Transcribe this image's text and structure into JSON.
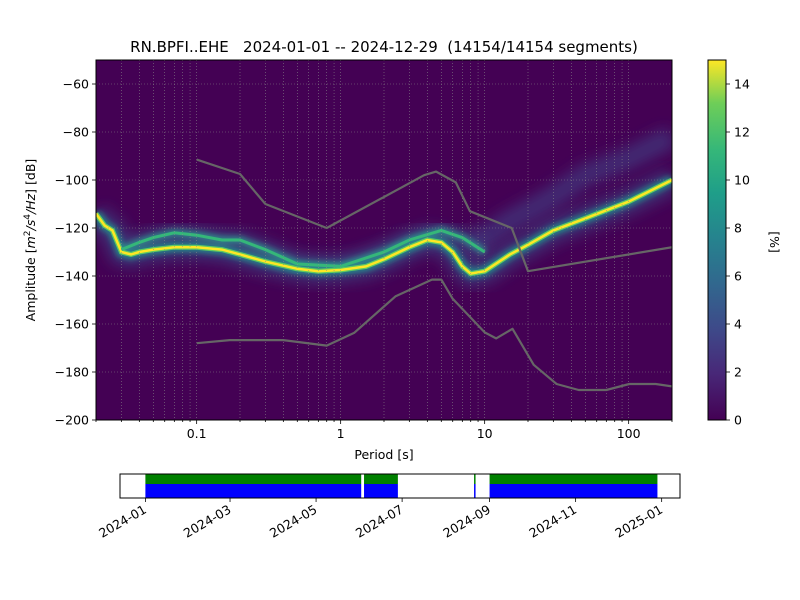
{
  "chart_data": [
    {
      "type": "heatmap",
      "title": "RN.BPFI..EHE   2024-01-01 -- 2024-12-29  (14154/14154 segments)",
      "xlabel": "Period [s]",
      "ylabel": "Amplitude [m²/s⁴/Hz] [dB]",
      "ylabel_parts": {
        "pre": "Amplitude [",
        "m": "m",
        "s": "s",
        "exp2": "2",
        "exp4": "4",
        "hz": "/Hz",
        "post": "] [dB]"
      },
      "x_scale": "log",
      "xlim": [
        0.02,
        200
      ],
      "ylim": [
        -200,
        -50
      ],
      "x_tick_labels": [
        "0.1",
        "1",
        "10",
        "100"
      ],
      "x_ticks": [
        0.1,
        1,
        10,
        100
      ],
      "y_ticks": [
        -200,
        -180,
        -160,
        -140,
        -120,
        -100,
        -80,
        -60
      ],
      "y_tick_labels": [
        "−200",
        "−180",
        "−160",
        "−140",
        "−120",
        "−100",
        "−80",
        "−60"
      ],
      "grid": true,
      "background_color": "#440154",
      "colorbar": {
        "label": "[%]",
        "range": [
          0,
          15
        ],
        "ticks": [
          0,
          2,
          4,
          6,
          8,
          10,
          12,
          14
        ],
        "tick_labels": [
          "0",
          "2",
          "4",
          "6",
          "8",
          "10",
          "12",
          "14"
        ]
      },
      "dominant_ridge": {
        "name": "",
        "points": [
          [
            0.02,
            -114
          ],
          [
            0.023,
            -119
          ],
          [
            0.026,
            -121
          ],
          [
            0.03,
            -130
          ],
          [
            0.035,
            -131
          ],
          [
            0.04,
            -130
          ],
          [
            0.05,
            -129
          ],
          [
            0.07,
            -128
          ],
          [
            0.1,
            -128
          ],
          [
            0.15,
            -129
          ],
          [
            0.2,
            -131
          ],
          [
            0.3,
            -134
          ],
          [
            0.5,
            -137
          ],
          [
            0.7,
            -138
          ],
          [
            1,
            -137.5
          ],
          [
            1.5,
            -136
          ],
          [
            2,
            -133
          ],
          [
            3,
            -128
          ],
          [
            4,
            -125
          ],
          [
            5,
            -126
          ],
          [
            6,
            -130
          ],
          [
            7,
            -136
          ],
          [
            8,
            -139
          ],
          [
            10,
            -138
          ],
          [
            15,
            -131
          ],
          [
            20,
            -127
          ],
          [
            30,
            -121
          ],
          [
            50,
            -116
          ],
          [
            100,
            -109
          ],
          [
            200,
            -100
          ]
        ]
      },
      "secondary_ridge": {
        "name": "",
        "points": [
          [
            0.03,
            -129
          ],
          [
            0.04,
            -126
          ],
          [
            0.05,
            -124
          ],
          [
            0.07,
            -122
          ],
          [
            0.1,
            -123
          ],
          [
            0.15,
            -125
          ],
          [
            0.2,
            -125
          ],
          [
            0.3,
            -129
          ],
          [
            0.5,
            -135
          ],
          [
            1,
            -136
          ],
          [
            2,
            -130
          ],
          [
            3,
            -125
          ],
          [
            5,
            -121
          ],
          [
            7,
            -124
          ],
          [
            10,
            -130
          ]
        ]
      },
      "reference_curves": [
        {
          "name": "",
          "color": "#666666",
          "points": [
            [
              0.1,
              -91.5
            ],
            [
              0.2,
              -97.5
            ],
            [
              0.3,
              -110
            ],
            [
              0.8,
              -120
            ],
            [
              3.8,
              -98
            ],
            [
              4.6,
              -96.5
            ],
            [
              6.3,
              -101
            ],
            [
              7.9,
              -113
            ],
            [
              15.4,
              -120
            ],
            [
              20,
              -138
            ],
            [
              200,
              -128
            ]
          ]
        },
        {
          "name": "",
          "color": "#666666",
          "points": [
            [
              0.1,
              -168
            ],
            [
              0.17,
              -166.7
            ],
            [
              0.4,
              -166.7
            ],
            [
              0.8,
              -169
            ],
            [
              1.24,
              -163.7
            ],
            [
              2.4,
              -148.5
            ],
            [
              4.3,
              -141.5
            ],
            [
              5,
              -141.5
            ],
            [
              6,
              -149.5
            ],
            [
              10,
              -163.5
            ],
            [
              12,
              -166
            ],
            [
              15.6,
              -162
            ],
            [
              21.9,
              -177
            ],
            [
              31.6,
              -185
            ],
            [
              45,
              -187.5
            ],
            [
              70,
              -187.5
            ],
            [
              101,
              -185
            ],
            [
              154,
              -185
            ],
            [
              200,
              -186
            ]
          ]
        }
      ]
    },
    {
      "type": "timeline",
      "x_tick_labels": [
        "2024-01",
        "2024-03",
        "2024-05",
        "2024-07",
        "2024-09",
        "2024-11",
        "2025-01"
      ],
      "x_ticks": [
        "2024-01-01",
        "2024-03-01",
        "2024-05-01",
        "2024-07-01",
        "2024-09-01",
        "2024-11-01",
        "2025-01-01"
      ],
      "xlim": [
        "2023-12-14",
        "2025-01-14"
      ],
      "colors": {
        "data": "#0000ff",
        "psd": "#008000"
      },
      "available_ranges": [
        [
          "2024-01-01",
          "2024-06-02"
        ],
        [
          "2024-06-04",
          "2024-06-28"
        ],
        [
          "2024-08-21",
          "2024-08-22"
        ],
        [
          "2024-09-01",
          "2024-12-29"
        ]
      ]
    }
  ]
}
